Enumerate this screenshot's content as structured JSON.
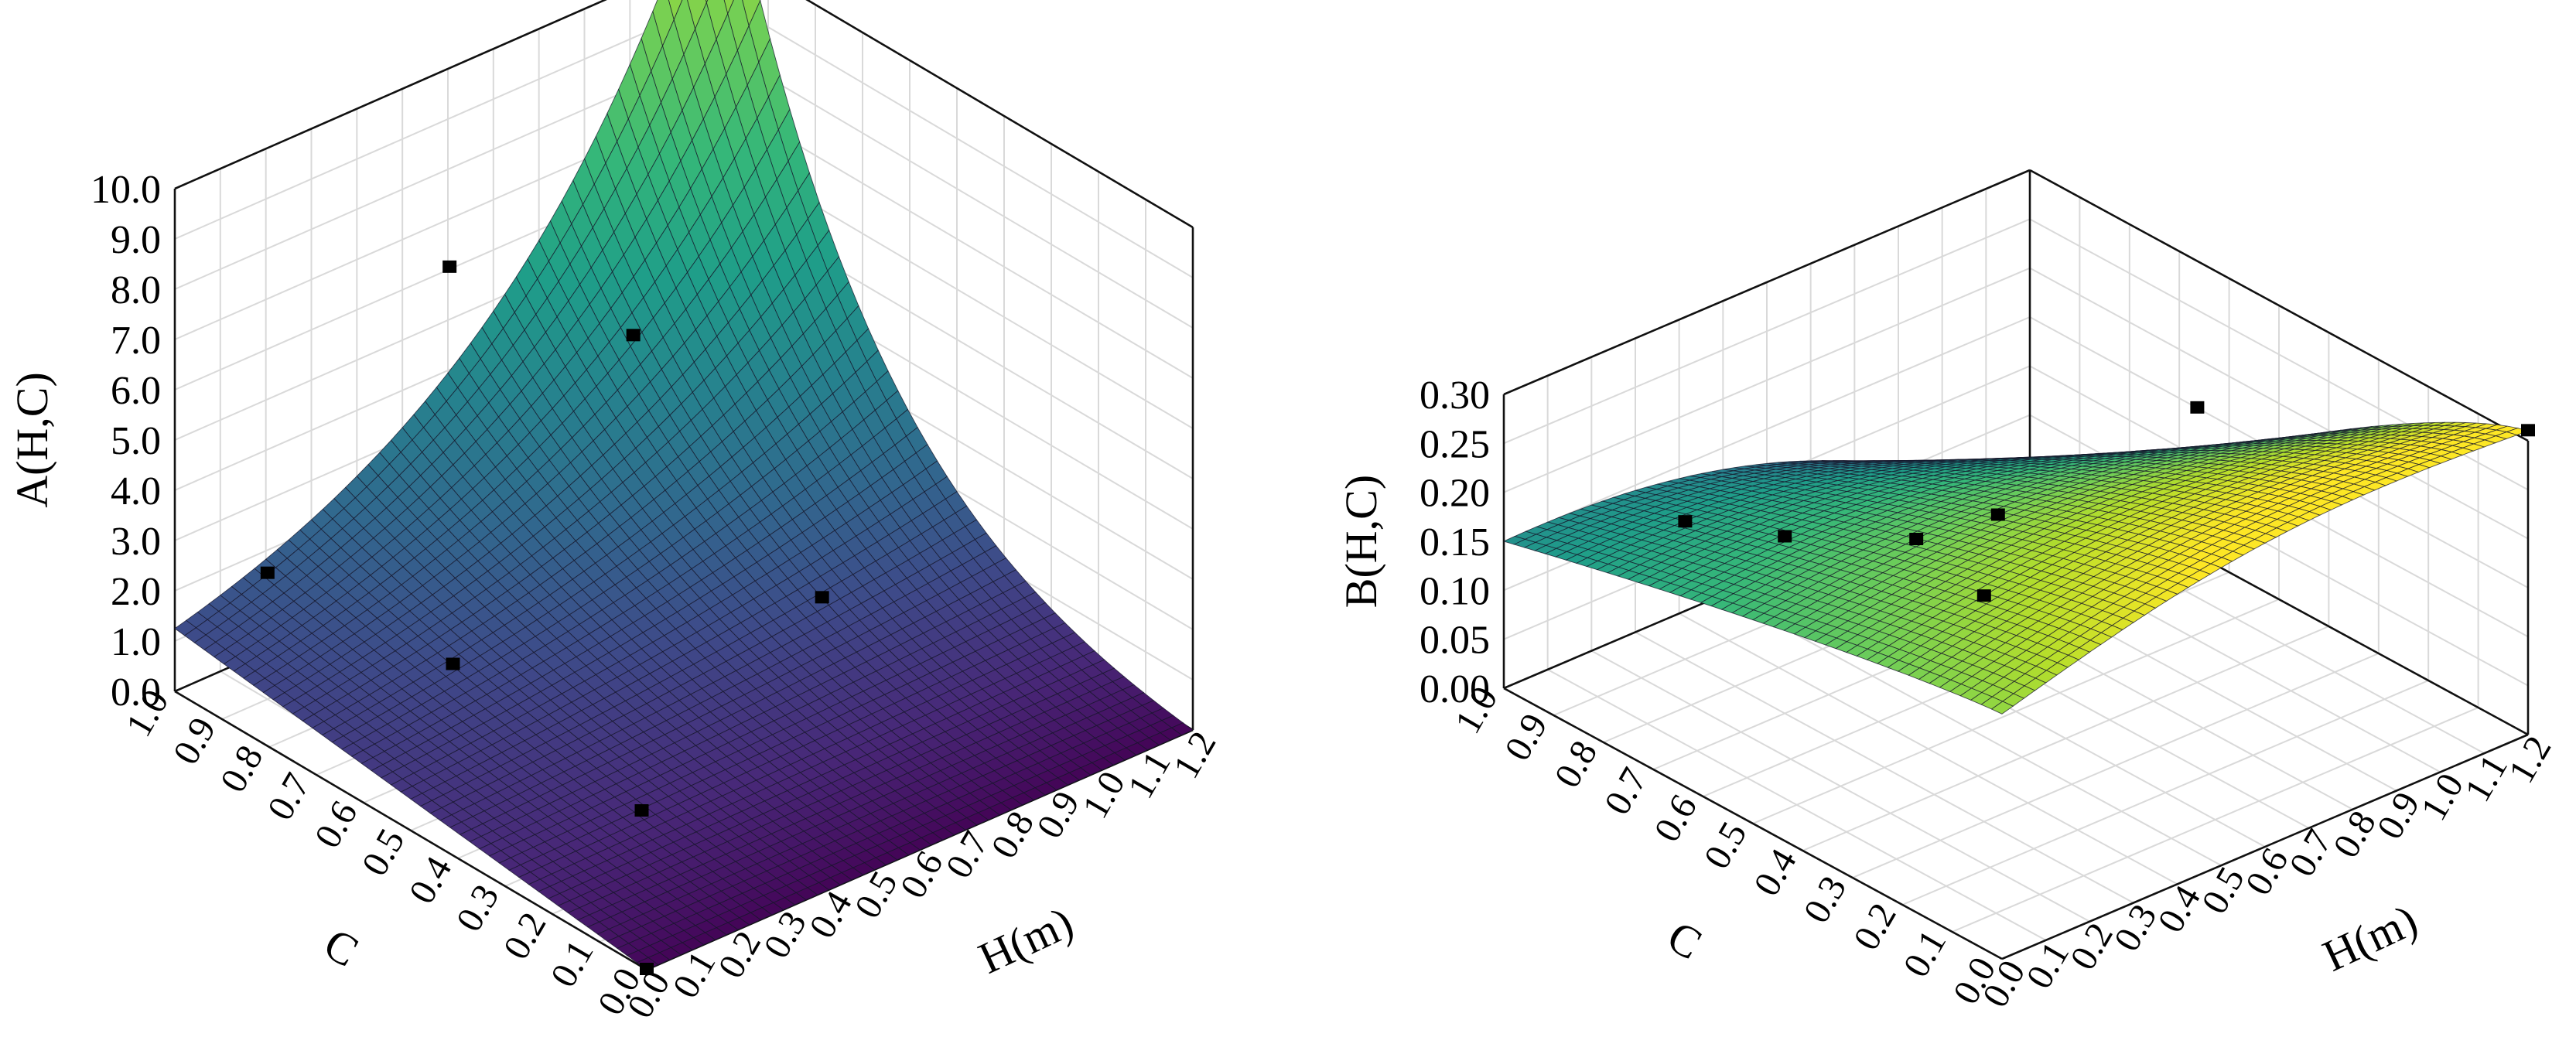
{
  "chart_data": [
    {
      "type": "surface",
      "colormap": "viridis",
      "grid": true,
      "zlabel": "A(H,C)",
      "xlabel": "H(m)",
      "ylabel": "C",
      "z_ticks": [
        "0.0",
        "1.0",
        "2.0",
        "3.0",
        "4.0",
        "5.0",
        "6.0",
        "7.0",
        "8.0",
        "9.0",
        "10.0"
      ],
      "x_ticks": [
        "0.0",
        "0.1",
        "0.2",
        "0.3",
        "0.4",
        "0.5",
        "0.6",
        "0.7",
        "0.8",
        "0.9",
        "1.0",
        "1.1",
        "1.2"
      ],
      "y_ticks": [
        "0.0",
        "0.1",
        "0.2",
        "0.3",
        "0.4",
        "0.5",
        "0.6",
        "0.7",
        "0.8",
        "0.9",
        "1.0"
      ],
      "xlim": [
        0,
        1.2
      ],
      "ylim": [
        0,
        1
      ],
      "zlim": [
        0,
        10
      ],
      "surface_samples": [
        {
          "H": 0,
          "C": 0,
          "z": 0
        },
        {
          "H": 1.2,
          "C": 0,
          "z": 0
        },
        {
          "H": 0,
          "C": 1,
          "z": 1.2
        },
        {
          "H": 0.6,
          "C": 0.5,
          "z": 1.8
        },
        {
          "H": 1.2,
          "C": 1,
          "z": 12.5
        }
      ],
      "points": [
        {
          "H": 0.0,
          "C": 0.0,
          "z": 0.0
        },
        {
          "H": 0.3,
          "C": 0.3,
          "z": 0.3
        },
        {
          "H": 0.3,
          "C": 0.7,
          "z": 1.0
        },
        {
          "H": 0.1,
          "C": 0.9,
          "z": 2.5
        },
        {
          "H": 0.8,
          "C": 0.4,
          "z": 2.0
        },
        {
          "H": 0.8,
          "C": 0.8,
          "z": 5.0
        },
        {
          "H": 0.5,
          "C": 0.9,
          "z": 7.0
        }
      ]
    },
    {
      "type": "surface",
      "colormap": "viridis",
      "grid": true,
      "zlabel": "B(H,C)",
      "xlabel": "H(m)",
      "ylabel": "C",
      "z_ticks": [
        "0.00",
        "0.05",
        "0.10",
        "0.15",
        "0.20",
        "0.25",
        "0.30"
      ],
      "x_ticks": [
        "0.0",
        "0.1",
        "0.2",
        "0.3",
        "0.4",
        "0.5",
        "0.6",
        "0.7",
        "0.8",
        "0.9",
        "1.0",
        "1.1",
        "1.2"
      ],
      "y_ticks": [
        "0.0",
        "0.1",
        "0.2",
        "0.3",
        "0.4",
        "0.5",
        "0.6",
        "0.7",
        "0.8",
        "0.9",
        "1.0"
      ],
      "xlim": [
        0,
        1.2
      ],
      "ylim": [
        0,
        1
      ],
      "zlim": [
        0,
        0.3
      ],
      "surface_samples": [
        {
          "H": 0,
          "C": 0,
          "z": 0.25
        },
        {
          "H": 1.2,
          "C": 0,
          "z": 0.31
        },
        {
          "H": 0,
          "C": 1,
          "z": 0.15
        },
        {
          "H": 0.6,
          "C": 0.5,
          "z": 0.25
        },
        {
          "H": 1.2,
          "C": 1,
          "z": 0.0
        }
      ],
      "points": [
        {
          "H": 1.2,
          "C": 0.0,
          "z": 0.31
        },
        {
          "H": 0.3,
          "C": 0.3,
          "z": 0.23
        },
        {
          "H": 0.9,
          "C": 0.4,
          "z": 0.28
        },
        {
          "H": 0.3,
          "C": 0.7,
          "z": 0.18
        },
        {
          "H": 0.6,
          "C": 0.7,
          "z": 0.12
        },
        {
          "H": 0.9,
          "C": 0.8,
          "z": 0.06
        },
        {
          "H": 0.3,
          "C": 0.9,
          "z": 0.14
        }
      ]
    }
  ]
}
